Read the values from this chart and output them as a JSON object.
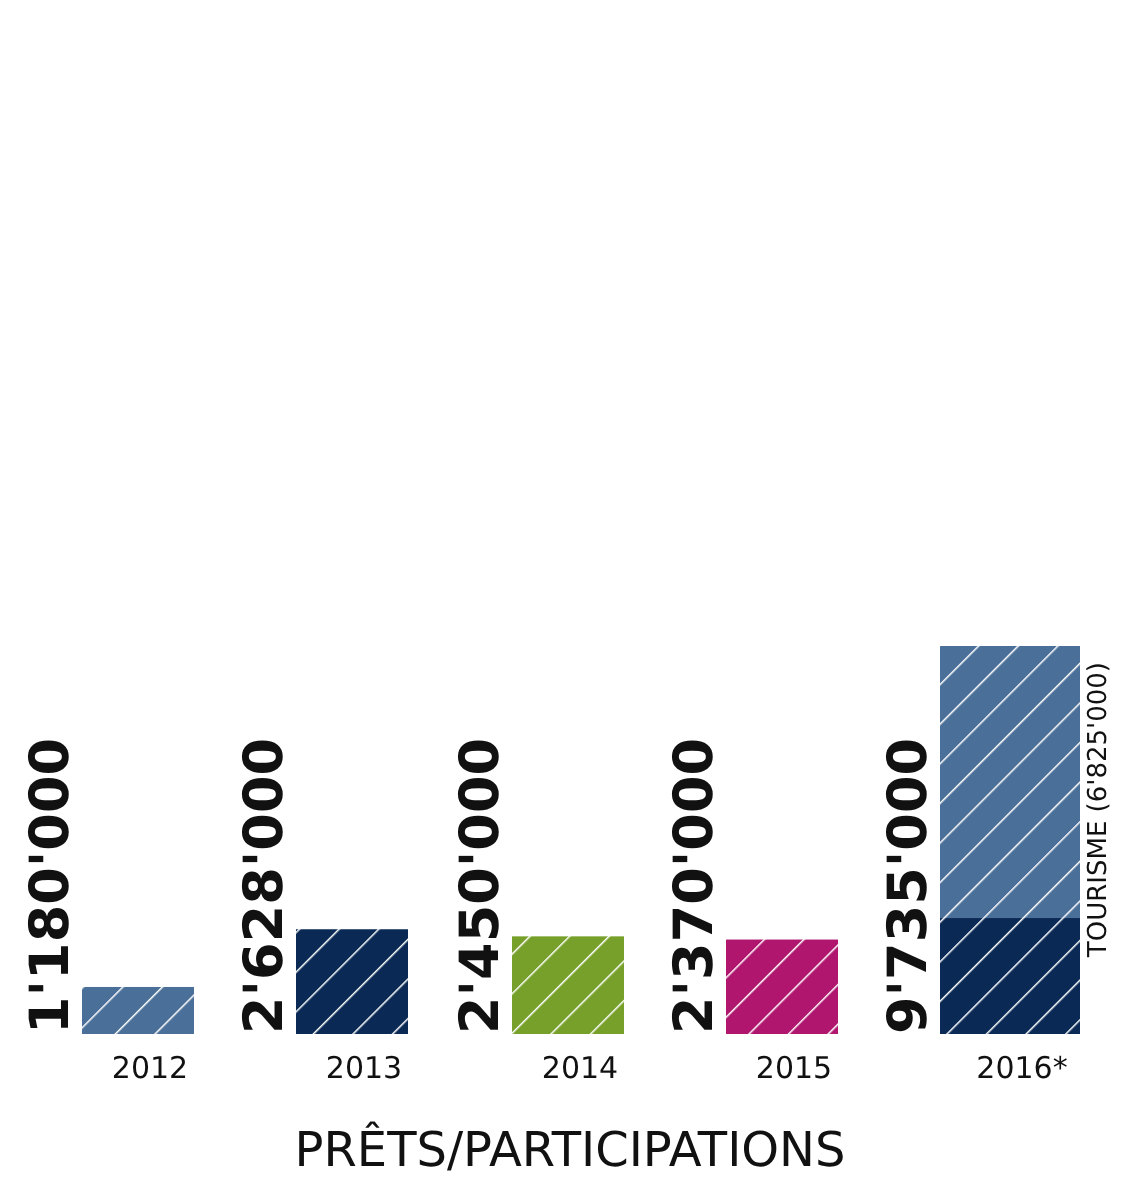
{
  "chart_data": {
    "type": "bar",
    "xlabel": "PRÊTS/PARTICIPATIONS",
    "categories": [
      "2012",
      "2013",
      "2014",
      "2015",
      "2016*"
    ],
    "stacked": true,
    "legend": false,
    "series": [
      {
        "colors": [
          "#4a6f98",
          "#0a2a55",
          "#76a02a",
          "#b0166e",
          "#0a2a55"
        ],
        "values": [
          1180000,
          2628000,
          2450000,
          2370000,
          2910000
        ],
        "value_labels": [
          "1'180'000",
          "2'628'000",
          "2'450'000",
          "2'370'000",
          null
        ]
      },
      {
        "name": "TOURISME",
        "color": "#4a6f98",
        "values": [
          null,
          null,
          null,
          null,
          6825000
        ],
        "value_labels": [
          null,
          null,
          null,
          null,
          "(6'825'000)"
        ]
      }
    ],
    "totals": [
      null,
      null,
      null,
      null,
      "9'735'000"
    ]
  }
}
